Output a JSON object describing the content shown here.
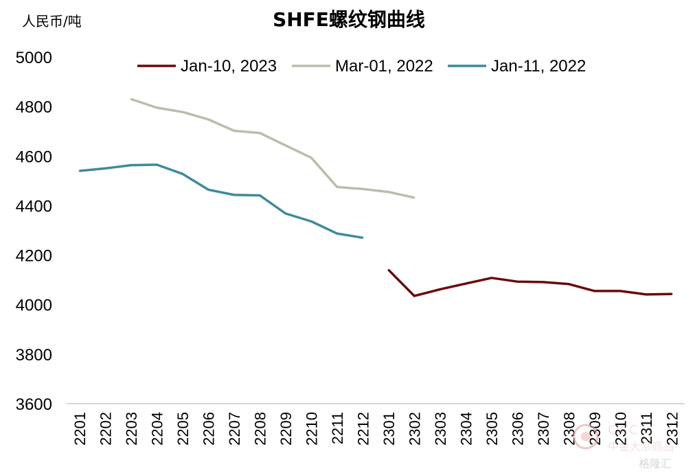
{
  "chart_data": {
    "type": "line",
    "title": "SHFE螺纹钢曲线",
    "ylabel": "人民币/吨",
    "xlabel": "",
    "ylim": [
      3600,
      5000
    ],
    "yticks": [
      3600,
      3800,
      4000,
      4200,
      4400,
      4600,
      4800,
      5000
    ],
    "categories": [
      "2201",
      "2202",
      "2203",
      "2204",
      "2205",
      "2206",
      "2207",
      "2208",
      "2209",
      "2210",
      "2211",
      "2212",
      "2301",
      "2302",
      "2303",
      "2304",
      "2305",
      "2306",
      "2307",
      "2308",
      "2309",
      "2310",
      "2311",
      "2312"
    ],
    "legend_position": "top",
    "grid": false,
    "series": [
      {
        "name": "Jan-10, 2023",
        "color": "#6b0a0a",
        "values": [
          null,
          null,
          null,
          null,
          null,
          null,
          null,
          null,
          null,
          null,
          null,
          null,
          4140,
          4035,
          4062,
          4085,
          4108,
          4093,
          4091,
          4083,
          4055,
          4055,
          4041,
          4043
        ]
      },
      {
        "name": "Mar-01, 2022",
        "color": "#bcbcaa",
        "values": [
          null,
          null,
          4830,
          4795,
          4778,
          4748,
          4702,
          4693,
          4643,
          4593,
          4475,
          4467,
          4455,
          4432,
          null,
          null,
          null,
          null,
          null,
          null,
          null,
          null,
          null,
          null
        ]
      },
      {
        "name": "Jan-11, 2022",
        "color": "#3d8a9a",
        "values": [
          4540,
          4550,
          4563,
          4565,
          4528,
          4464,
          4443,
          4441,
          4368,
          4336,
          4287,
          4270,
          null,
          null,
          null,
          null,
          null,
          null,
          null,
          null,
          null,
          null,
          null,
          null
        ]
      }
    ]
  },
  "watermark": {
    "brand": "CICC",
    "cn_name": "中金大宗商品",
    "stamp": "格隆汇"
  }
}
